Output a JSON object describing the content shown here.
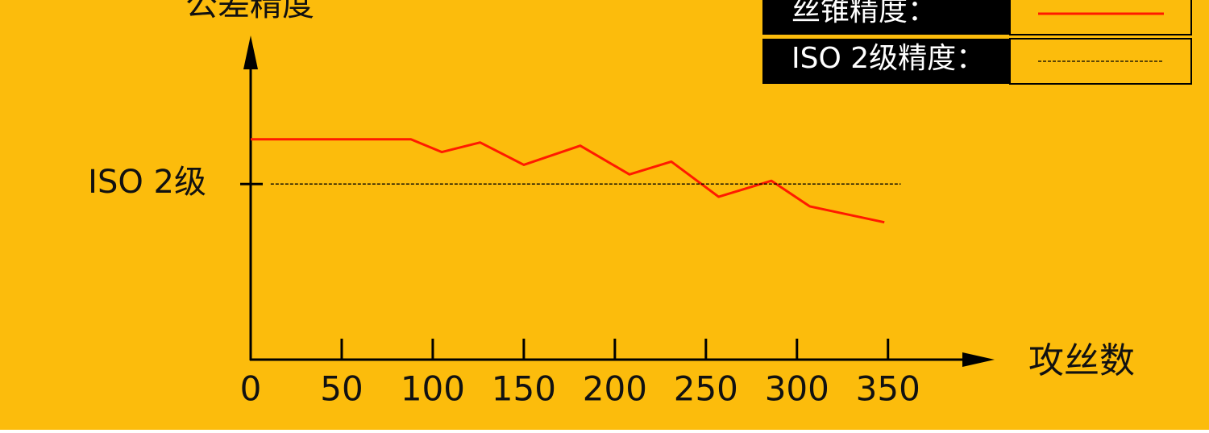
{
  "chart_data": {
    "type": "line",
    "title": "公差精度",
    "x_label": "攻丝数",
    "xlim": [
      0,
      405
    ],
    "xticks": [
      0,
      50,
      100,
      150,
      200,
      250,
      300,
      350
    ],
    "ylim": [
      0,
      100
    ],
    "yticks": [
      {
        "value": 55,
        "label": "ISO 2级"
      }
    ],
    "legend": "top-right",
    "series": [
      {
        "name": "丝锥精度：",
        "color": "#ff1a00",
        "style": "solid",
        "x": [
          0,
          88,
          105,
          126,
          150,
          181,
          208,
          231,
          257,
          286,
          307,
          348
        ],
        "values": [
          69,
          69,
          65,
          68,
          61,
          67,
          58,
          62,
          51,
          56,
          48,
          43
        ]
      },
      {
        "name": "ISO 2级精度：",
        "color": "#000000",
        "style": "dashed",
        "x": [
          11,
          357
        ],
        "values": [
          55,
          55
        ]
      }
    ]
  }
}
